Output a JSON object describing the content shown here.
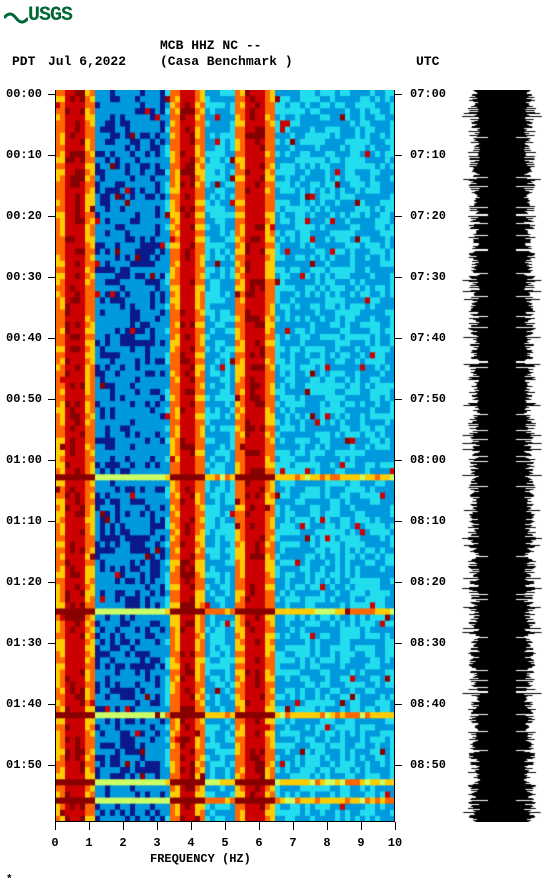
{
  "logo_text": "USGS",
  "logo_color": "#006633",
  "header": {
    "station_code": "MCB HHZ NC --",
    "tz_left": "PDT",
    "date": "Jul 6,2022",
    "station_name": "(Casa Benchmark )",
    "tz_right": "UTC"
  },
  "chart": {
    "type": "spectrogram",
    "xlabel": "FREQUENCY (HZ)",
    "xlim": [
      0,
      10
    ],
    "xticks": [
      0,
      1,
      2,
      3,
      4,
      5,
      6,
      7,
      8,
      9,
      10
    ],
    "y_left_ticks": [
      "00:00",
      "00:10",
      "00:20",
      "00:30",
      "00:40",
      "00:50",
      "01:00",
      "01:10",
      "01:20",
      "01:30",
      "01:40",
      "01:50"
    ],
    "y_right_ticks": [
      "07:00",
      "07:10",
      "07:20",
      "07:30",
      "07:40",
      "07:50",
      "08:00",
      "08:10",
      "08:20",
      "08:30",
      "08:40",
      "08:50"
    ],
    "time_rows": 120,
    "freq_cols": 68,
    "colormap": {
      "low": "#0a1a8a",
      "mid1": "#0099dd",
      "mid2": "#22ddee",
      "mid3": "#ccff66",
      "high1": "#ffcc00",
      "high2": "#ff6600",
      "high3": "#cc0000",
      "peak": "#880000"
    },
    "background_color": "#ffffff",
    "axis_color": "#000000",
    "label_fontsize": 12,
    "header_fontsize": 13,
    "hot_freq_bands": [
      0.5,
      3.8,
      5.8
    ],
    "hot_band_widths": [
      0.3,
      0.2,
      0.3
    ],
    "event_rows": [
      63,
      85,
      102,
      113,
      116
    ]
  },
  "waveform": {
    "color": "#000000",
    "bg": "#ffffff",
    "samples": 730,
    "base_amplitude": 0.7,
    "jitter": 0.3
  },
  "footer_mark": "*"
}
